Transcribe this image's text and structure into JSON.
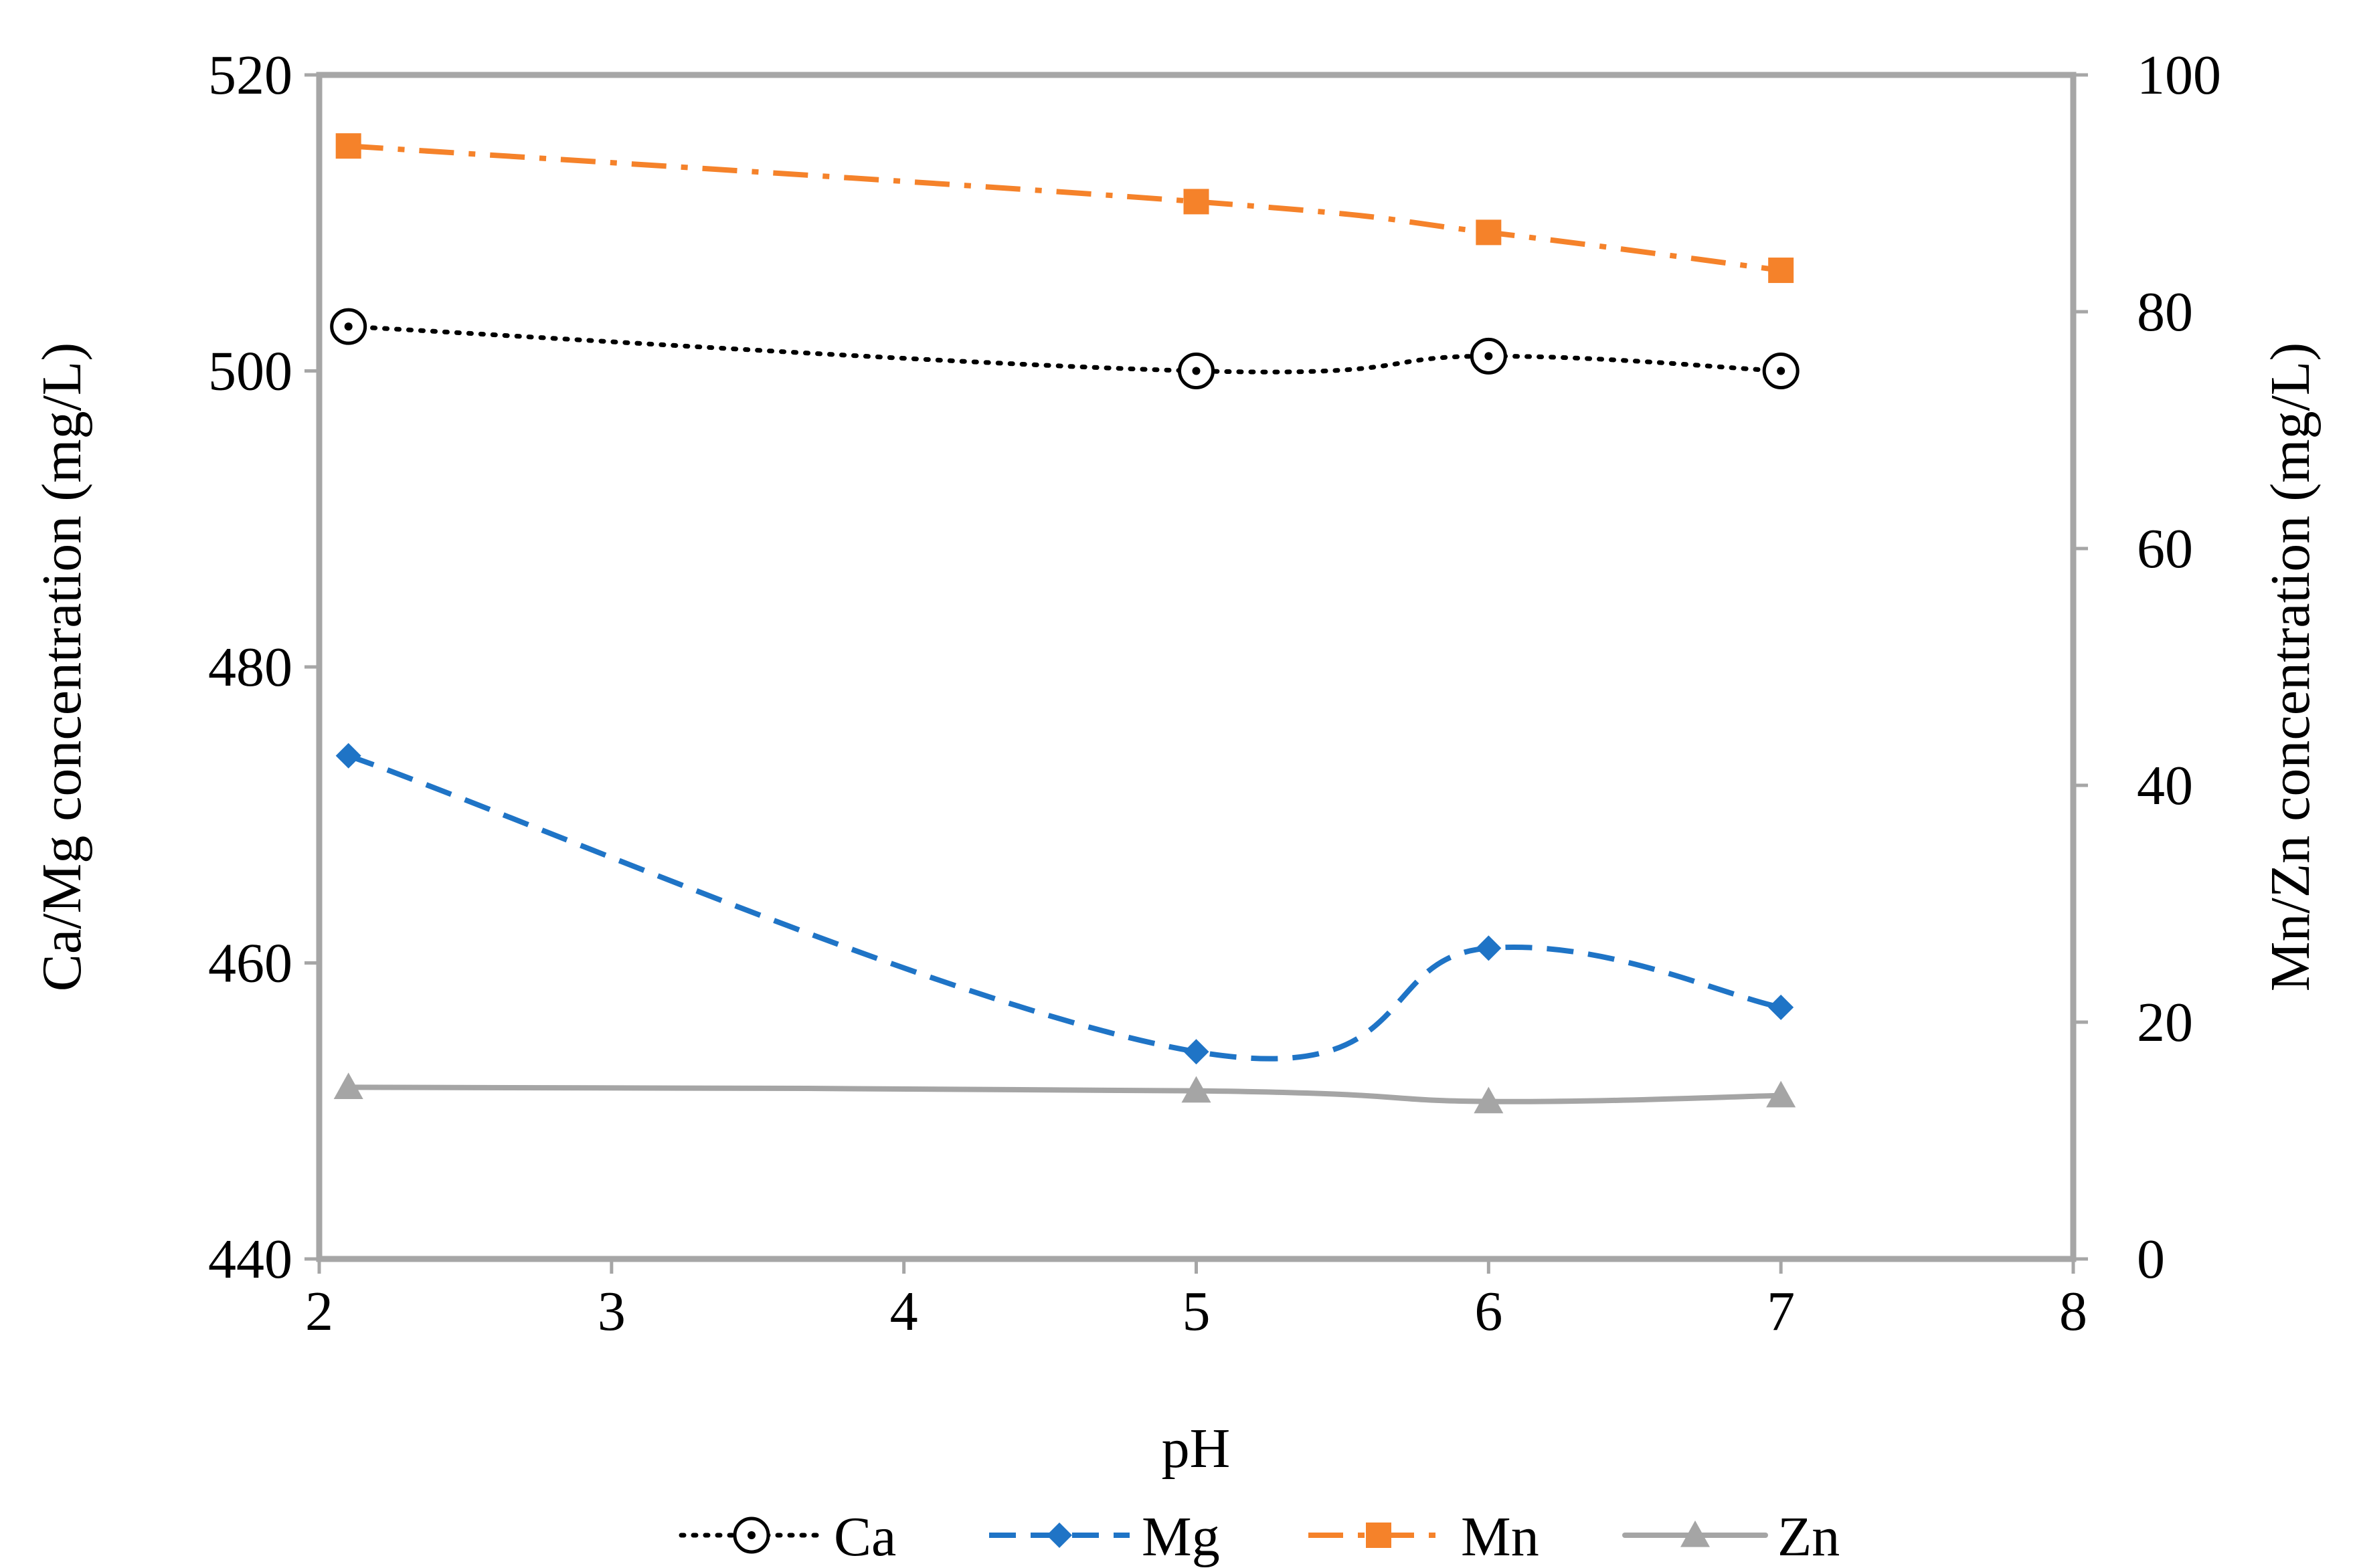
{
  "chart_data": {
    "type": "line",
    "title": "",
    "xlabel": "pH",
    "ylabel": "Ca/Mg concentration (mg/L)",
    "y2label": "Mn/Zn concentration (mg/L)",
    "xlim": [
      2,
      8
    ],
    "ylim": [
      440,
      520
    ],
    "y2lim": [
      0,
      100
    ],
    "xticks": [
      2,
      3,
      4,
      5,
      6,
      7,
      8
    ],
    "xtick_labels": [
      "2",
      "3",
      "4",
      "5",
      "6",
      "7",
      "8"
    ],
    "yticks": [
      440,
      460,
      480,
      500,
      520
    ],
    "ytick_labels": [
      "440",
      "460",
      "480",
      "500",
      "520"
    ],
    "y2ticks": [
      0,
      20,
      40,
      60,
      80,
      100
    ],
    "y2tick_labels": [
      "0",
      "20",
      "40",
      "60",
      "80",
      "100"
    ],
    "grid": false,
    "legend_position": "bottom",
    "series": [
      {
        "name": "Ca",
        "axis": "left",
        "color": "#000000",
        "style": "dotted",
        "marker": "circle-dot",
        "x": [
          2.1,
          5,
          6,
          7
        ],
        "values": [
          503,
          500,
          501,
          500
        ]
      },
      {
        "name": "Mg",
        "axis": "left",
        "color": "#1f74c6",
        "style": "dashed",
        "marker": "diamond",
        "x": [
          2.1,
          5,
          6,
          7
        ],
        "values": [
          474,
          454,
          461,
          457
        ]
      },
      {
        "name": "Mn",
        "axis": "right",
        "color": "#f5822a",
        "style": "dashdot",
        "marker": "square",
        "x": [
          2.1,
          5,
          6,
          7
        ],
        "values": [
          94,
          89.3,
          86.7,
          83.5
        ]
      },
      {
        "name": "Zn",
        "axis": "right",
        "color": "#a5a5a5",
        "style": "solid",
        "marker": "triangle",
        "x": [
          2.1,
          5,
          6,
          7
        ],
        "values": [
          14.5,
          14.2,
          13.3,
          13.8
        ]
      }
    ]
  }
}
